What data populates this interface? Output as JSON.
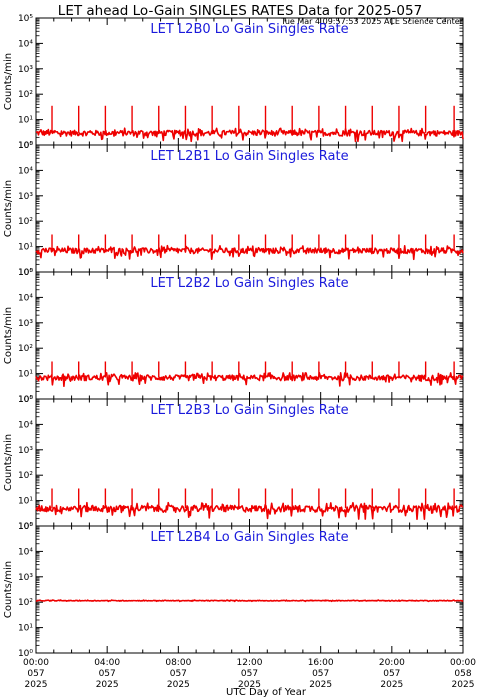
{
  "header": {
    "title": "LET ahead Lo-Gain SINGLES RATES Data for 2025-057",
    "timestamp": "Tue Mar  4 09:57:53 2025 ACE Science Center"
  },
  "chart_data": {
    "type": "line",
    "ylabel": "Counts/min",
    "xlabel": "UTC Day of Year",
    "yscale": "log",
    "ylim": [
      1,
      100000
    ],
    "ytick_labels": [
      "10⁰",
      "10¹",
      "10²",
      "10³",
      "10⁴",
      "10⁵"
    ],
    "xlim_hours": [
      0,
      24
    ],
    "x_ticks": [
      {
        "hour": 0,
        "time": "00:00",
        "doy": "057",
        "year": "2025"
      },
      {
        "hour": 4,
        "time": "04:00",
        "doy": "057",
        "year": "2025"
      },
      {
        "hour": 8,
        "time": "08:00",
        "doy": "057",
        "year": "2025"
      },
      {
        "hour": 12,
        "time": "12:00",
        "doy": "057",
        "year": "2025"
      },
      {
        "hour": 16,
        "time": "16:00",
        "doy": "057",
        "year": "2025"
      },
      {
        "hour": 20,
        "time": "20:00",
        "doy": "057",
        "year": "2025"
      },
      {
        "hour": 24,
        "time": "00:00",
        "doy": "058",
        "year": "2025"
      }
    ],
    "series_color": "#ee0000",
    "panels": [
      {
        "title": "LET L2B0 Lo Gain Singles Rate",
        "baseline": 3,
        "noise": 0.25,
        "spikes": [
          {
            "hour": 0.9,
            "value": 35
          },
          {
            "hour": 2.4,
            "value": 35
          },
          {
            "hour": 3.9,
            "value": 35
          },
          {
            "hour": 5.4,
            "value": 35
          },
          {
            "hour": 6.9,
            "value": 35
          },
          {
            "hour": 8.4,
            "value": 35
          },
          {
            "hour": 9.9,
            "value": 35
          },
          {
            "hour": 11.4,
            "value": 35
          },
          {
            "hour": 12.9,
            "value": 35
          },
          {
            "hour": 14.4,
            "value": 35
          },
          {
            "hour": 15.9,
            "value": 35
          },
          {
            "hour": 17.4,
            "value": 35
          },
          {
            "hour": 18.9,
            "value": 35
          },
          {
            "hour": 20.4,
            "value": 35
          },
          {
            "hour": 21.9,
            "value": 35
          },
          {
            "hour": 23.5,
            "value": 35
          }
        ]
      },
      {
        "title": "LET L2B1 Lo Gain Singles Rate",
        "baseline": 7,
        "noise": 0.25,
        "spikes": [
          {
            "hour": 0.9,
            "value": 30
          },
          {
            "hour": 2.4,
            "value": 30
          },
          {
            "hour": 3.9,
            "value": 30
          },
          {
            "hour": 5.4,
            "value": 30
          },
          {
            "hour": 6.9,
            "value": 30
          },
          {
            "hour": 8.4,
            "value": 30
          },
          {
            "hour": 9.9,
            "value": 30
          },
          {
            "hour": 11.4,
            "value": 30
          },
          {
            "hour": 12.9,
            "value": 30
          },
          {
            "hour": 14.4,
            "value": 30
          },
          {
            "hour": 15.9,
            "value": 30
          },
          {
            "hour": 17.4,
            "value": 30
          },
          {
            "hour": 18.9,
            "value": 30
          },
          {
            "hour": 20.4,
            "value": 30
          },
          {
            "hour": 21.9,
            "value": 30
          },
          {
            "hour": 23.5,
            "value": 30
          }
        ]
      },
      {
        "title": "LET L2B2 Lo Gain Singles Rate",
        "baseline": 7,
        "noise": 0.25,
        "spikes": [
          {
            "hour": 0.9,
            "value": 30
          },
          {
            "hour": 2.4,
            "value": 30
          },
          {
            "hour": 3.9,
            "value": 30
          },
          {
            "hour": 5.4,
            "value": 30
          },
          {
            "hour": 6.9,
            "value": 30
          },
          {
            "hour": 8.4,
            "value": 30
          },
          {
            "hour": 9.9,
            "value": 30
          },
          {
            "hour": 11.4,
            "value": 30
          },
          {
            "hour": 12.9,
            "value": 30
          },
          {
            "hour": 14.4,
            "value": 30
          },
          {
            "hour": 15.9,
            "value": 30
          },
          {
            "hour": 17.4,
            "value": 30
          },
          {
            "hour": 18.9,
            "value": 30
          },
          {
            "hour": 20.4,
            "value": 30
          },
          {
            "hour": 21.9,
            "value": 30
          },
          {
            "hour": 23.5,
            "value": 30
          }
        ]
      },
      {
        "title": "LET L2B3 Lo Gain Singles Rate",
        "baseline": 5,
        "noise": 0.3,
        "spikes": [
          {
            "hour": 0.9,
            "value": 30
          },
          {
            "hour": 2.4,
            "value": 30
          },
          {
            "hour": 3.9,
            "value": 30
          },
          {
            "hour": 5.4,
            "value": 30
          },
          {
            "hour": 6.9,
            "value": 30
          },
          {
            "hour": 8.4,
            "value": 30
          },
          {
            "hour": 9.9,
            "value": 30
          },
          {
            "hour": 11.4,
            "value": 30
          },
          {
            "hour": 12.9,
            "value": 30
          },
          {
            "hour": 14.4,
            "value": 30
          },
          {
            "hour": 15.9,
            "value": 30
          },
          {
            "hour": 17.4,
            "value": 30
          },
          {
            "hour": 18.9,
            "value": 30
          },
          {
            "hour": 20.4,
            "value": 30
          },
          {
            "hour": 21.9,
            "value": 30
          },
          {
            "hour": 23.5,
            "value": 30
          }
        ]
      },
      {
        "title": "LET L2B4 Lo Gain Singles Rate",
        "baseline": 115,
        "noise": 0.03,
        "spikes": []
      }
    ]
  }
}
